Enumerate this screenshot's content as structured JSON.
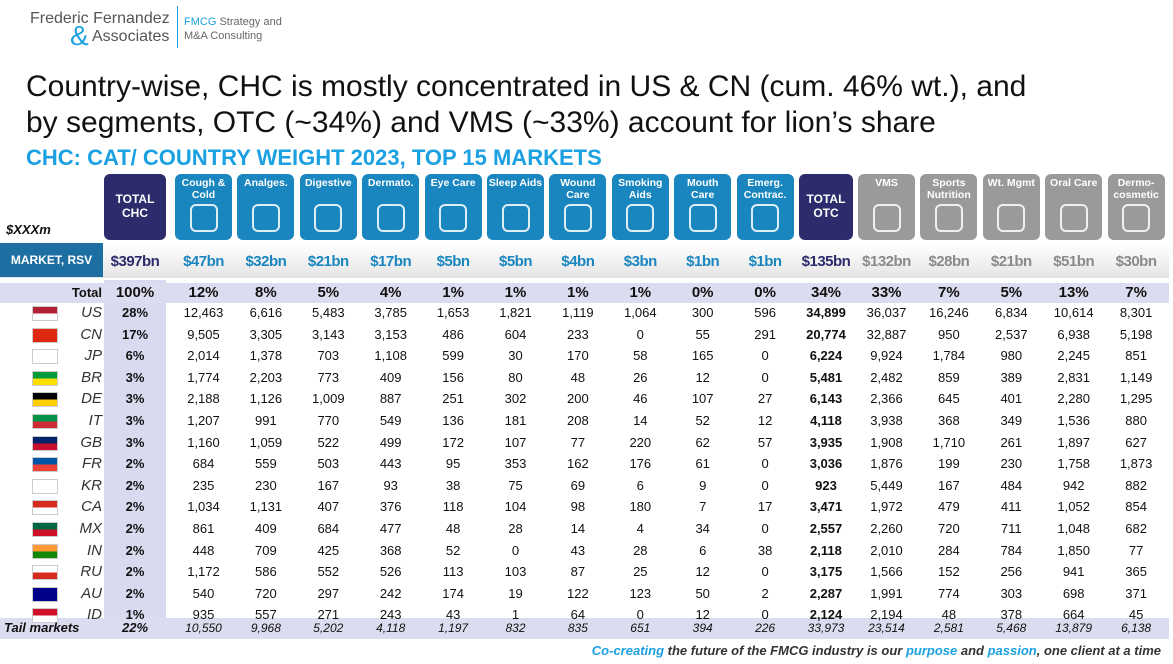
{
  "header": {
    "logo": [
      "Frederic Fernandez",
      "&",
      "Associates"
    ],
    "tagline": [
      "FMCG",
      " Strategy and",
      "M&A Consulting"
    ],
    "title": [
      "Country-wise, CHC is mostly concentrated in US & CN (cum. 46% wt.), and",
      "by segments, OTC (~34%) and VMS (~33%) account for lion’s share"
    ],
    "subtitle": "CHC: CAT/ COUNTRY WEIGHT 2023, TOP 15 MARKETS"
  },
  "table": {
    "unit": "$XXXm",
    "market_label": "MARKET, RSV",
    "columns": [
      {
        "label": "TOTAL CHC",
        "total": "$397bn"
      },
      {
        "label": "Cough & Cold",
        "total": "$47bn"
      },
      {
        "label": "Analges.",
        "total": "$32bn"
      },
      {
        "label": "Digestive",
        "total": "$21bn"
      },
      {
        "label": "Dermato.",
        "total": "$17bn"
      },
      {
        "label": "Eye Care",
        "total": "$5bn"
      },
      {
        "label": "Sleep Aids",
        "total": "$5bn"
      },
      {
        "label": "Wound Care",
        "total": "$4bn"
      },
      {
        "label": "Smoking Aids",
        "total": "$3bn"
      },
      {
        "label": "Mouth Care",
        "total": "$1bn"
      },
      {
        "label": "Emerg. Contrac.",
        "total": "$1bn"
      },
      {
        "label": "TOTAL OTC",
        "total": "$135bn"
      },
      {
        "label": "VMS",
        "total": "$132bn"
      },
      {
        "label": "Sports Nutrition",
        "total": "$28bn"
      },
      {
        "label": "Wt. Mgmt",
        "total": "$21bn"
      },
      {
        "label": "Oral Care",
        "total": "$51bn"
      },
      {
        "label": "Dermo-cosmetic",
        "total": "$30bn"
      }
    ],
    "total_row": {
      "label": "Total",
      "values": [
        "100%",
        "12%",
        "8%",
        "5%",
        "4%",
        "1%",
        "1%",
        "1%",
        "1%",
        "0%",
        "0%",
        "34%",
        "33%",
        "7%",
        "5%",
        "13%",
        "7%"
      ]
    },
    "rows": [
      {
        "code": "US",
        "share": "28%",
        "values": [
          "12,463",
          "6,616",
          "5,483",
          "3,785",
          "1,653",
          "1,821",
          "1,119",
          "1,064",
          "300",
          "596",
          "34,899",
          "36,037",
          "16,246",
          "6,834",
          "10,614",
          "8,301"
        ]
      },
      {
        "code": "CN",
        "share": "17%",
        "values": [
          "9,505",
          "3,305",
          "3,143",
          "3,153",
          "486",
          "604",
          "233",
          "0",
          "55",
          "291",
          "20,774",
          "32,887",
          "950",
          "2,537",
          "6,938",
          "5,198"
        ]
      },
      {
        "code": "JP",
        "share": "6%",
        "values": [
          "2,014",
          "1,378",
          "703",
          "1,108",
          "599",
          "30",
          "170",
          "58",
          "165",
          "0",
          "6,224",
          "9,924",
          "1,784",
          "980",
          "2,245",
          "851"
        ]
      },
      {
        "code": "BR",
        "share": "3%",
        "values": [
          "1,774",
          "2,203",
          "773",
          "409",
          "156",
          "80",
          "48",
          "26",
          "12",
          "0",
          "5,481",
          "2,482",
          "859",
          "389",
          "2,831",
          "1,149"
        ]
      },
      {
        "code": "DE",
        "share": "3%",
        "values": [
          "2,188",
          "1,126",
          "1,009",
          "887",
          "251",
          "302",
          "200",
          "46",
          "107",
          "27",
          "6,143",
          "2,366",
          "645",
          "401",
          "2,280",
          "1,295"
        ]
      },
      {
        "code": "IT",
        "share": "3%",
        "values": [
          "1,207",
          "991",
          "770",
          "549",
          "136",
          "181",
          "208",
          "14",
          "52",
          "12",
          "4,118",
          "3,938",
          "368",
          "349",
          "1,536",
          "880"
        ]
      },
      {
        "code": "GB",
        "share": "3%",
        "values": [
          "1,160",
          "1,059",
          "522",
          "499",
          "172",
          "107",
          "77",
          "220",
          "62",
          "57",
          "3,935",
          "1,908",
          "1,710",
          "261",
          "1,897",
          "627"
        ]
      },
      {
        "code": "FR",
        "share": "2%",
        "values": [
          "684",
          "559",
          "503",
          "443",
          "95",
          "353",
          "162",
          "176",
          "61",
          "0",
          "3,036",
          "1,876",
          "199",
          "230",
          "1,758",
          "1,873"
        ]
      },
      {
        "code": "KR",
        "share": "2%",
        "values": [
          "235",
          "230",
          "167",
          "93",
          "38",
          "75",
          "69",
          "6",
          "9",
          "0",
          "923",
          "5,449",
          "167",
          "484",
          "942",
          "882"
        ]
      },
      {
        "code": "CA",
        "share": "2%",
        "values": [
          "1,034",
          "1,131",
          "407",
          "376",
          "118",
          "104",
          "98",
          "180",
          "7",
          "17",
          "3,471",
          "1,972",
          "479",
          "411",
          "1,052",
          "854"
        ]
      },
      {
        "code": "MX",
        "share": "2%",
        "values": [
          "861",
          "409",
          "684",
          "477",
          "48",
          "28",
          "14",
          "4",
          "34",
          "0",
          "2,557",
          "2,260",
          "720",
          "711",
          "1,048",
          "682"
        ]
      },
      {
        "code": "IN",
        "share": "2%",
        "values": [
          "448",
          "709",
          "425",
          "368",
          "52",
          "0",
          "43",
          "28",
          "6",
          "38",
          "2,118",
          "2,010",
          "284",
          "784",
          "1,850",
          "77"
        ]
      },
      {
        "code": "RU",
        "share": "2%",
        "values": [
          "1,172",
          "586",
          "552",
          "526",
          "113",
          "103",
          "87",
          "25",
          "12",
          "0",
          "3,175",
          "1,566",
          "152",
          "256",
          "941",
          "365"
        ]
      },
      {
        "code": "AU",
        "share": "2%",
        "values": [
          "540",
          "720",
          "297",
          "242",
          "174",
          "19",
          "122",
          "123",
          "50",
          "2",
          "2,287",
          "1,991",
          "774",
          "303",
          "698",
          "371"
        ]
      },
      {
        "code": "ID",
        "share": "1%",
        "values": [
          "935",
          "557",
          "271",
          "243",
          "43",
          "1",
          "64",
          "0",
          "12",
          "0",
          "2,124",
          "2,194",
          "48",
          "378",
          "664",
          "45"
        ]
      }
    ],
    "tail_row": {
      "label": "Tail markets",
      "share": "22%",
      "values": [
        "10,550",
        "9,968",
        "5,202",
        "4,118",
        "1,197",
        "832",
        "835",
        "651",
        "394",
        "226",
        "33,973",
        "23,514",
        "2,581",
        "5,468",
        "13,879",
        "6,138"
      ]
    }
  },
  "footer": [
    "Co-creating",
    " the future of the FMCG industry is our ",
    "purpose",
    " and ",
    "passion",
    ", one client at a time"
  ]
}
